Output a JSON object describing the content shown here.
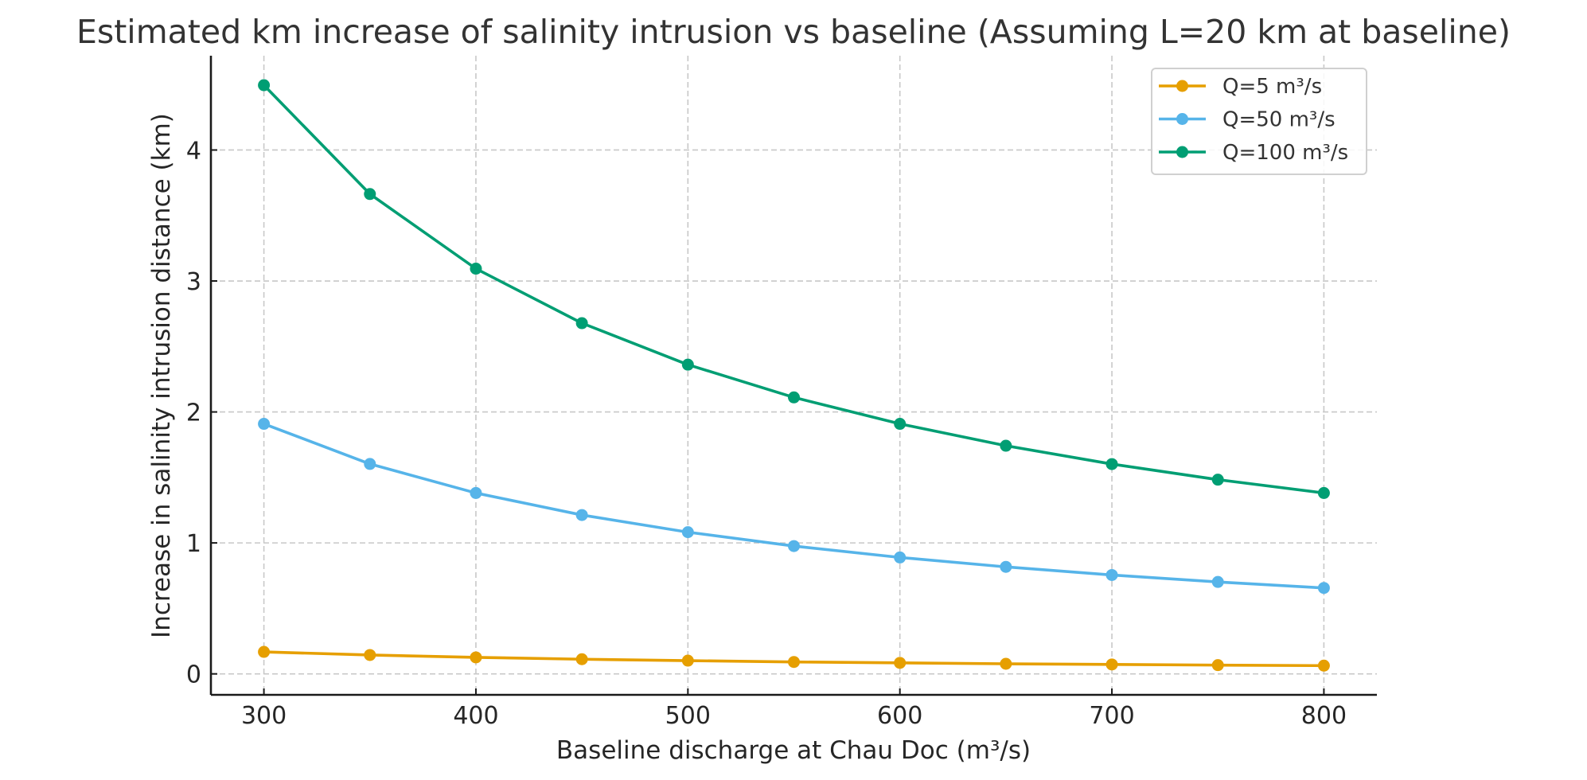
{
  "chart_data": {
    "type": "line",
    "title": "Estimated km increase of salinity intrusion vs baseline (Assuming L=20 km at baseline)",
    "xlabel": "Baseline discharge at Chau Doc (m³/s)",
    "ylabel": "Increase in salinity intrusion distance (km)",
    "x": [
      300,
      350,
      400,
      450,
      500,
      550,
      600,
      650,
      700,
      750,
      800
    ],
    "xlim": [
      275,
      825
    ],
    "ylim": [
      -0.16,
      4.72
    ],
    "xticks": [
      300,
      400,
      500,
      600,
      700,
      800
    ],
    "xtick_labels": [
      "300",
      "400",
      "500",
      "600",
      "700",
      "800"
    ],
    "yticks": [
      0,
      1,
      2,
      3,
      4
    ],
    "ytick_labels": [
      "0",
      "1",
      "2",
      "3",
      "4"
    ],
    "grid": true,
    "legend_position": "top-right",
    "series": [
      {
        "name": "Q=5 m³/s",
        "color": "#E69F00",
        "marker": "circle",
        "values": [
          0.168,
          0.144,
          0.126,
          0.112,
          0.101,
          0.091,
          0.084,
          0.077,
          0.072,
          0.067,
          0.063
        ]
      },
      {
        "name": "Q=50 m³/s",
        "color": "#56B4E9",
        "marker": "circle",
        "values": [
          1.909,
          1.603,
          1.381,
          1.213,
          1.082,
          0.976,
          0.889,
          0.817,
          0.755,
          0.702,
          0.656
        ]
      },
      {
        "name": "Q=100 m³/s",
        "color": "#009E73",
        "marker": "circle",
        "values": [
          4.495,
          3.664,
          3.094,
          2.678,
          2.361,
          2.111,
          1.909,
          1.742,
          1.602,
          1.483,
          1.381
        ]
      }
    ]
  }
}
